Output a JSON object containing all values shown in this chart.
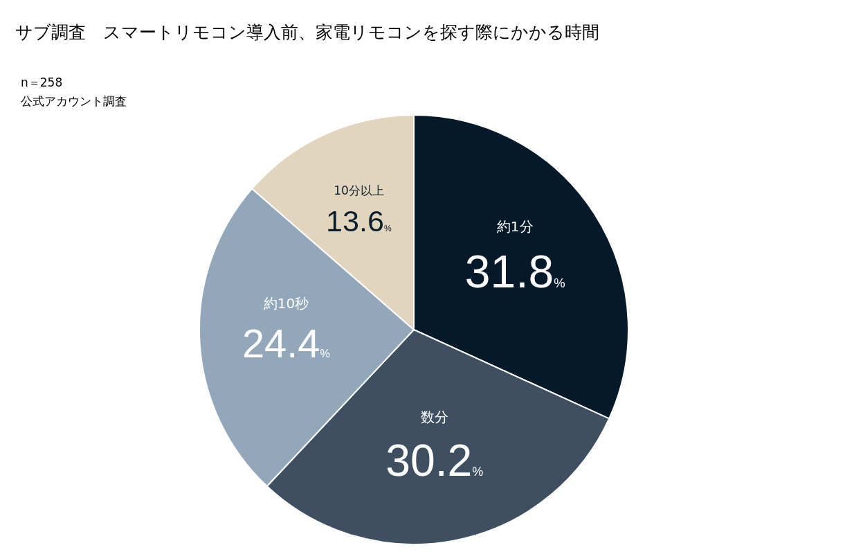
{
  "chart_data": {
    "type": "pie",
    "title": "サブ調査　スマートリモコン導入前、家電リモコンを探す際にかかる時間",
    "annotations": [
      "n＝258",
      "公式アカウント調査"
    ],
    "categories": [
      "約1分",
      "数分",
      "約10秒",
      "10分以上"
    ],
    "values": [
      31.8,
      30.2,
      24.4,
      13.6
    ],
    "value_labels": [
      "31.8%",
      "30.2%",
      "24.4%",
      "13.6%"
    ],
    "colors": [
      "#041a2a",
      "#3d4f60",
      "#93a7bb",
      "#e2d5be"
    ],
    "legend": false
  }
}
